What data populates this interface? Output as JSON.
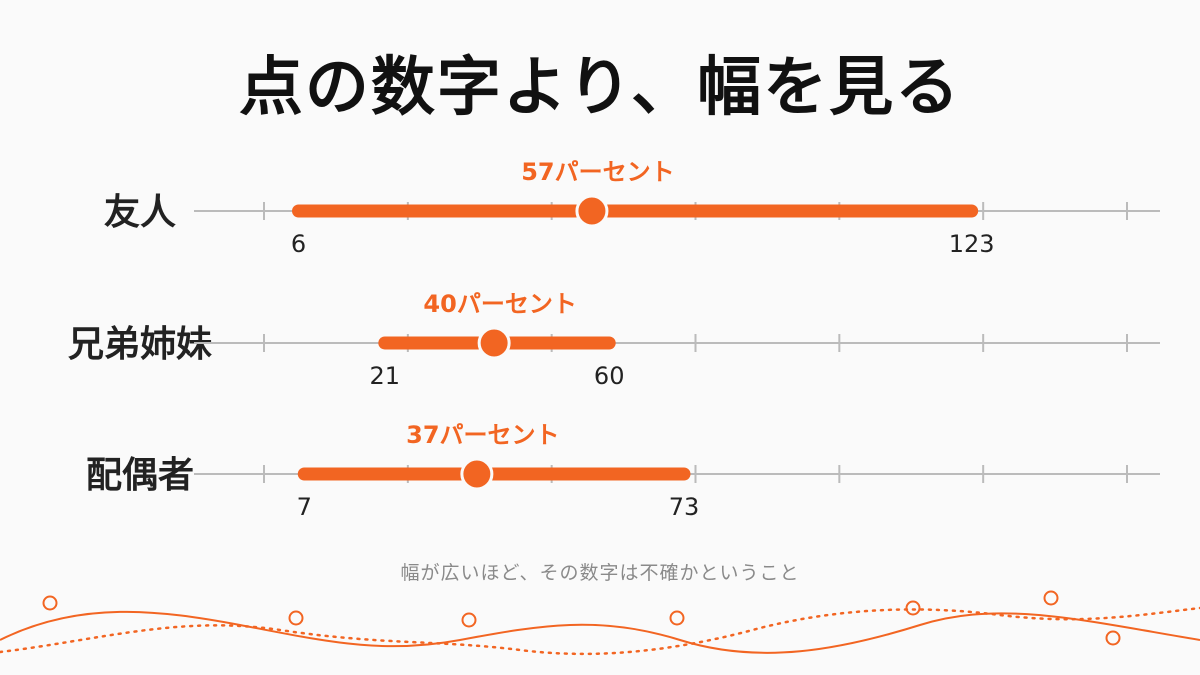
{
  "title": "点の数字より、幅を見る",
  "footnote": "幅が広いほど、その数字は不確かということ",
  "colors": {
    "accent": "#f26522",
    "axis": "#bbbbbb",
    "text": "#222222",
    "footnote": "#8a8a8a"
  },
  "chart_data": {
    "type": "interval",
    "xlim": [
      0,
      150
    ],
    "grid_ticks": [
      0,
      25,
      50,
      75,
      100,
      125,
      150
    ],
    "rows": [
      {
        "label": "友人",
        "low": 6,
        "high": 123,
        "point": 57,
        "point_label": "57パーセント",
        "tick_labels": [
          "6",
          "123"
        ]
      },
      {
        "label": "兄弟姉妹",
        "low": 21,
        "high": 60,
        "point": 40,
        "point_label": "40パーセント",
        "tick_labels": [
          "21",
          "60"
        ]
      },
      {
        "label": "配偶者",
        "low": 7,
        "high": 73,
        "point": 37,
        "point_label": "37パーセント",
        "tick_labels": [
          "7",
          "73"
        ]
      }
    ]
  }
}
